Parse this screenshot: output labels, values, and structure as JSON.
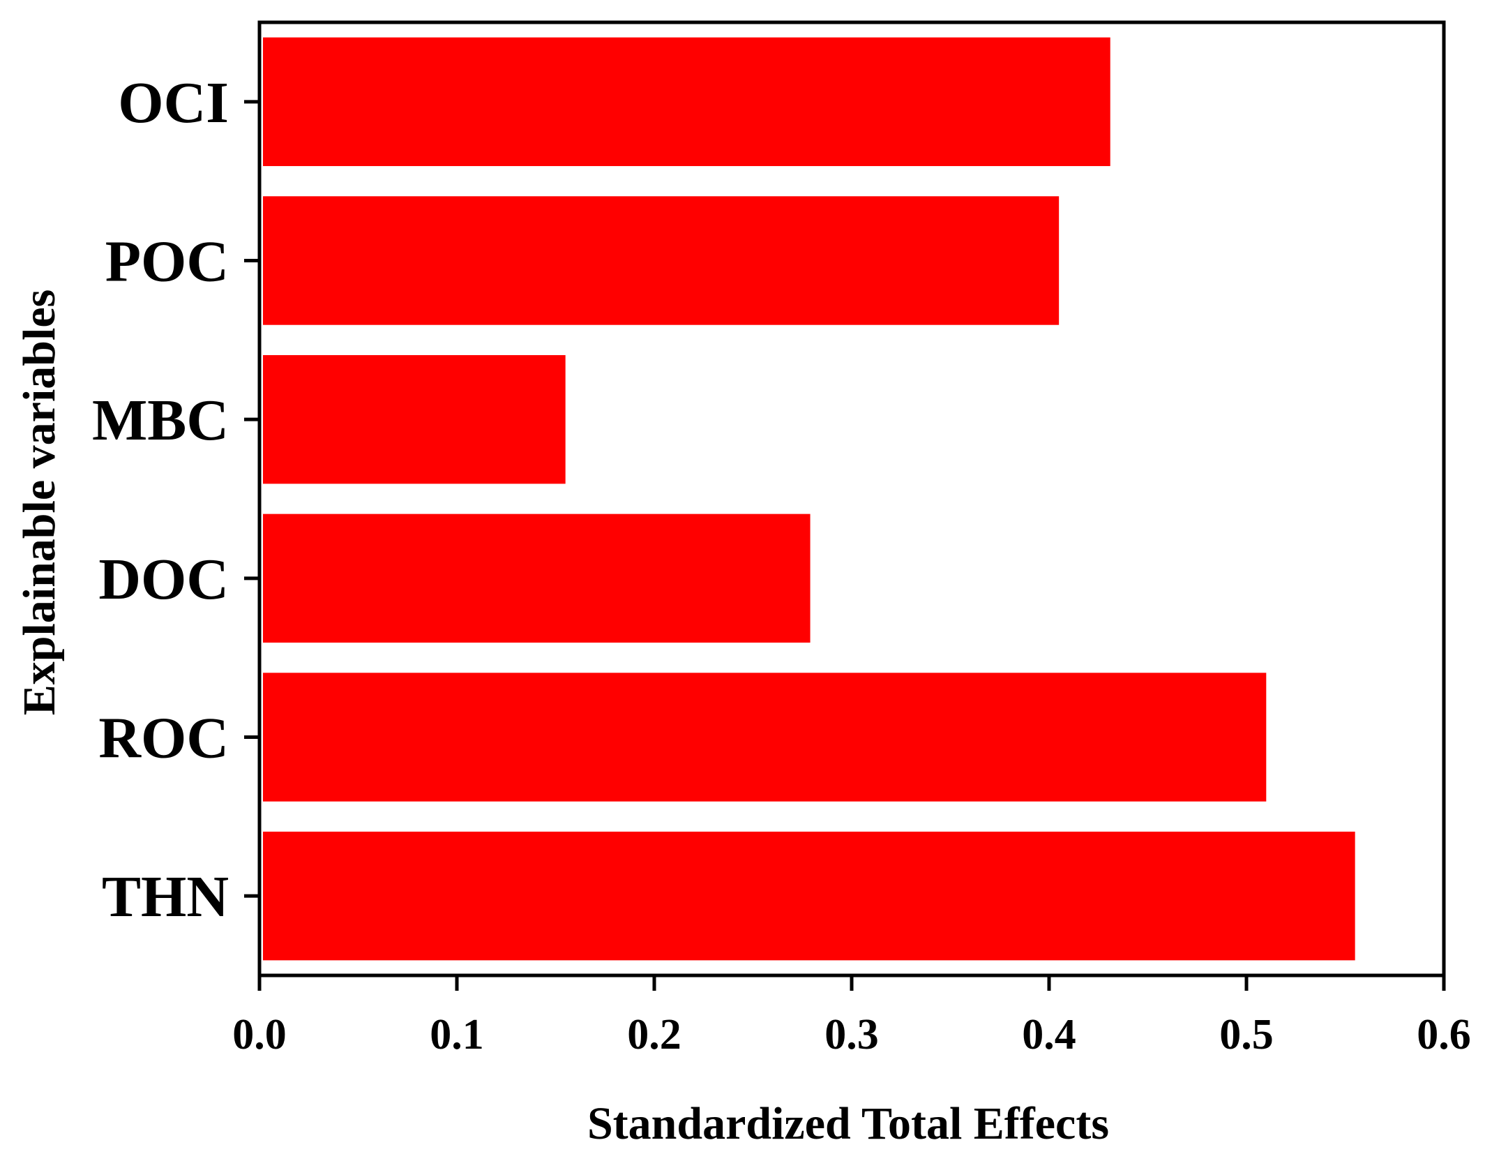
{
  "chart_data": {
    "type": "bar",
    "orientation": "horizontal",
    "categories": [
      "OCI",
      "POC",
      "MBC",
      "DOC",
      "ROC",
      "THN"
    ],
    "values": [
      0.431,
      0.405,
      0.155,
      0.279,
      0.51,
      0.555
    ],
    "xlabel": "Standardized Total Effects",
    "ylabel": "Explainable variables",
    "xlim": [
      0.0,
      0.6
    ],
    "xticks": [
      "0.0",
      "0.1",
      "0.2",
      "0.3",
      "0.4",
      "0.5",
      "0.6"
    ],
    "bar_color": "#ff0000",
    "grid": false
  }
}
